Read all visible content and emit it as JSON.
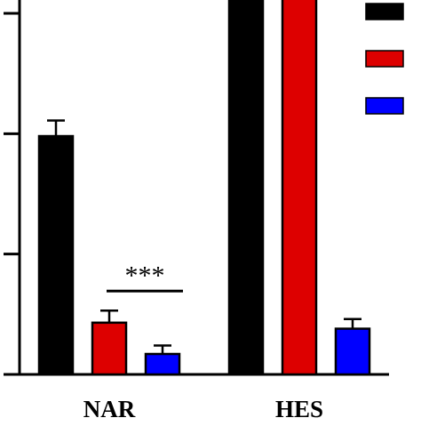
{
  "chart_data": {
    "type": "bar",
    "categories": [
      "NAR",
      "HES"
    ],
    "series": [
      {
        "color": "#000000",
        "values": [
          1.98,
          5.85
        ],
        "errors": [
          0.13,
          0.1
        ]
      },
      {
        "color": "#dd0000",
        "values": [
          0.43,
          3.6
        ],
        "errors": [
          0.1,
          0.07
        ]
      },
      {
        "color": "#0000ff",
        "values": [
          0.17,
          0.38
        ],
        "errors": [
          0.07,
          0.08
        ]
      }
    ],
    "annotations": [
      {
        "text": "***",
        "category": "NAR"
      },
      {
        "text": "***",
        "category": "HES"
      }
    ],
    "ylim": [
      0,
      6.2
    ],
    "yticks": [
      0,
      1,
      2,
      3,
      4
    ],
    "legend_position": "top-right",
    "grid": false
  }
}
